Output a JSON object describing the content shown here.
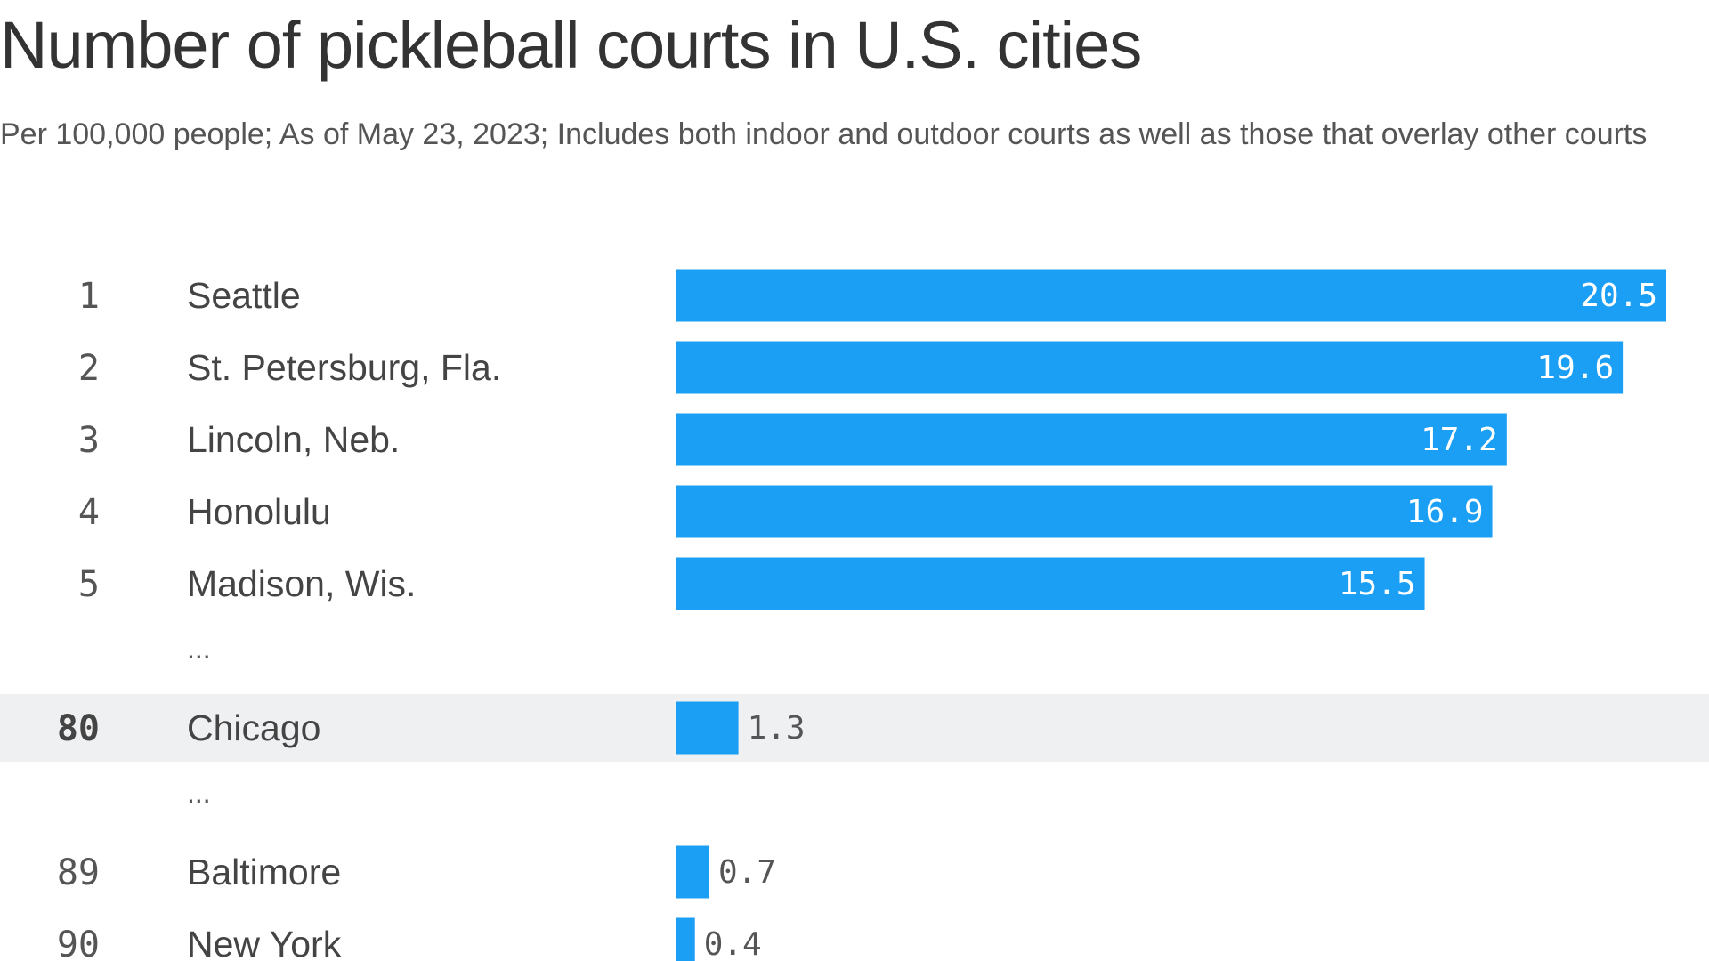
{
  "chart_data": {
    "type": "bar",
    "orientation": "horizontal",
    "title": "Number of pickleball courts in U.S. cities",
    "subtitle": "Per 100,000 people; As of May 23, 2023; Includes both indoor and outdoor courts as well as those that overlay other courts",
    "xlim": [
      0,
      20.5
    ],
    "ellipsis": "...",
    "rows": [
      {
        "rank": "1",
        "city": "Seattle",
        "value": 20.5,
        "label": "20.5"
      },
      {
        "rank": "2",
        "city": "St. Petersburg, Fla.",
        "value": 19.6,
        "label": "19.6"
      },
      {
        "rank": "3",
        "city": "Lincoln, Neb.",
        "value": 17.2,
        "label": "17.2"
      },
      {
        "rank": "4",
        "city": "Honolulu",
        "value": 16.9,
        "label": "16.9"
      },
      {
        "rank": "5",
        "city": "Madison, Wis.",
        "value": 15.5,
        "label": "15.5"
      },
      {
        "ellipsis": true
      },
      {
        "rank": "80",
        "city": "Chicago",
        "value": 1.3,
        "label": "1.3",
        "highlight": true
      },
      {
        "ellipsis": true
      },
      {
        "rank": "89",
        "city": "Baltimore",
        "value": 0.7,
        "label": "0.7"
      },
      {
        "rank": "90",
        "city": "New York",
        "value": 0.4,
        "label": "0.4"
      }
    ]
  },
  "colors": {
    "bar": "#1a9ff5",
    "highlight_row": "#eff0f2",
    "label_inside": "#ffffff",
    "label_outside": "#555555"
  }
}
